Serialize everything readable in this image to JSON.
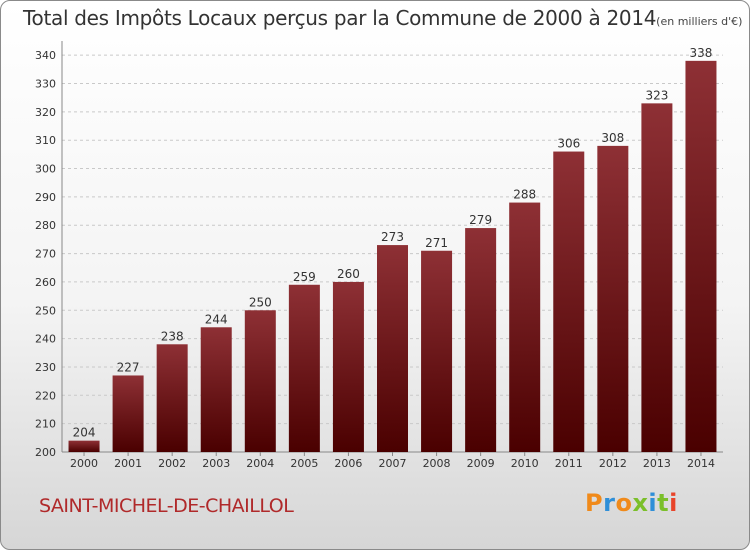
{
  "page": {
    "commune": "SAINT-MICHEL-DE-CHAILLOL",
    "brand": "Proxiti",
    "brand_colors": [
      "#f08a1a",
      "#2f8fd8",
      "#f08a1a",
      "#7bbf2a",
      "#2f8fd8",
      "#7bbf2a",
      "#e8442a"
    ]
  },
  "chart_data": {
    "type": "bar",
    "title": "Total des Impôts Locaux perçus par la Commune de 2000 à 2014",
    "unit_label": "(en milliers d'€)",
    "xlabel": "",
    "ylabel": "",
    "ylim": [
      200,
      345
    ],
    "yticks": [
      200,
      210,
      220,
      230,
      240,
      250,
      260,
      270,
      280,
      290,
      300,
      310,
      320,
      330,
      340
    ],
    "grid": true,
    "categories": [
      "2000",
      "2001",
      "2002",
      "2003",
      "2004",
      "2005",
      "2006",
      "2007",
      "2008",
      "2009",
      "2010",
      "2011",
      "2012",
      "2013",
      "2014"
    ],
    "values": [
      204,
      227,
      238,
      244,
      250,
      259,
      260,
      273,
      271,
      279,
      288,
      306,
      308,
      323,
      338
    ],
    "bar_color_top": "#8e3035",
    "bar_color_bottom": "#4a0000"
  }
}
